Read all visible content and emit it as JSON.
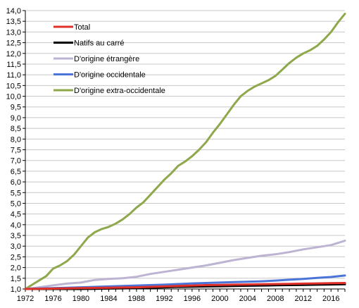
{
  "chart_data": {
    "type": "line",
    "ylim": [
      1.0,
      14.0
    ],
    "y_ticks": [
      "1,0",
      "1,5",
      "2,0",
      "2,5",
      "3,0",
      "3,5",
      "4,0",
      "4,5",
      "5,0",
      "5,5",
      "6,0",
      "6,5",
      "7,0",
      "7,5",
      "8,0",
      "8,5",
      "9,0",
      "9,5",
      "10,0",
      "10,5",
      "11,0",
      "11,5",
      "12,0",
      "12,5",
      "13,0",
      "13,5",
      "14,0"
    ],
    "xlim": [
      1972,
      2018
    ],
    "x_ticks": [
      "1972",
      "1976",
      "1980",
      "1984",
      "1988",
      "1992",
      "1996",
      "2000",
      "2004",
      "2008",
      "2012",
      "2016"
    ],
    "grid": "horizontal",
    "legend_position": "top-left",
    "series": [
      {
        "name": "Total",
        "color": "#e0302a",
        "x": [
          1972,
          1974,
          1976,
          1978,
          1980,
          1982,
          1984,
          1986,
          1988,
          1990,
          1992,
          1994,
          1996,
          1998,
          2000,
          2002,
          2004,
          2006,
          2008,
          2010,
          2012,
          2014,
          2016,
          2018
        ],
        "values": [
          1.0,
          1.01,
          1.02,
          1.03,
          1.04,
          1.05,
          1.06,
          1.07,
          1.08,
          1.1,
          1.12,
          1.14,
          1.16,
          1.18,
          1.19,
          1.2,
          1.21,
          1.22,
          1.23,
          1.24,
          1.25,
          1.26,
          1.27,
          1.28
        ]
      },
      {
        "name": "Natifs au carré",
        "color": "#000000",
        "x": [
          1972,
          1974,
          1976,
          1978,
          1980,
          1982,
          1984,
          1986,
          1988,
          1990,
          1992,
          1994,
          1996,
          1998,
          2000,
          2002,
          2004,
          2006,
          2008,
          2010,
          2012,
          2014,
          2016,
          2018
        ],
        "values": [
          1.0,
          1.0,
          1.0,
          1.0,
          1.0,
          1.01,
          1.02,
          1.03,
          1.04,
          1.06,
          1.08,
          1.1,
          1.11,
          1.12,
          1.13,
          1.14,
          1.15,
          1.16,
          1.17,
          1.18,
          1.19,
          1.2,
          1.21,
          1.22
        ]
      },
      {
        "name": "D'origine étrangère",
        "color": "#bdb3d3",
        "x": [
          1972,
          1974,
          1976,
          1978,
          1980,
          1982,
          1984,
          1986,
          1988,
          1990,
          1992,
          1994,
          1996,
          1998,
          2000,
          2002,
          2004,
          2006,
          2008,
          2010,
          2012,
          2014,
          2016,
          2018
        ],
        "values": [
          1.0,
          1.08,
          1.17,
          1.25,
          1.3,
          1.42,
          1.47,
          1.5,
          1.57,
          1.7,
          1.8,
          1.9,
          2.0,
          2.1,
          2.22,
          2.35,
          2.45,
          2.55,
          2.62,
          2.72,
          2.85,
          2.95,
          3.05,
          3.25
        ]
      },
      {
        "name": "D'origine occidentale",
        "color": "#4a74d8",
        "x": [
          1972,
          1974,
          1976,
          1978,
          1980,
          1982,
          1984,
          1986,
          1988,
          1990,
          1992,
          1994,
          1996,
          1998,
          2000,
          2002,
          2004,
          2006,
          2008,
          2010,
          2012,
          2014,
          2016,
          2018
        ],
        "values": [
          1.0,
          1.02,
          1.04,
          1.06,
          1.08,
          1.1,
          1.12,
          1.14,
          1.16,
          1.18,
          1.2,
          1.23,
          1.26,
          1.28,
          1.3,
          1.32,
          1.34,
          1.36,
          1.39,
          1.43,
          1.47,
          1.52,
          1.56,
          1.63
        ]
      },
      {
        "name": "D'origine extra-occidentale",
        "color": "#8ea84b",
        "x": [
          1972,
          1973,
          1974,
          1975,
          1976,
          1977,
          1978,
          1979,
          1980,
          1981,
          1982,
          1983,
          1984,
          1985,
          1986,
          1987,
          1988,
          1989,
          1990,
          1991,
          1992,
          1993,
          1994,
          1995,
          1996,
          1997,
          1998,
          1999,
          2000,
          2001,
          2002,
          2003,
          2004,
          2005,
          2006,
          2007,
          2008,
          2009,
          2010,
          2011,
          2012,
          2013,
          2014,
          2015,
          2016,
          2017,
          2018
        ],
        "values": [
          1.0,
          1.2,
          1.4,
          1.6,
          1.95,
          2.1,
          2.3,
          2.6,
          3.0,
          3.4,
          3.65,
          3.8,
          3.9,
          4.05,
          4.25,
          4.5,
          4.8,
          5.05,
          5.4,
          5.75,
          6.1,
          6.4,
          6.75,
          6.95,
          7.2,
          7.5,
          7.85,
          8.3,
          8.7,
          9.15,
          9.6,
          10.0,
          10.25,
          10.45,
          10.6,
          10.75,
          10.95,
          11.25,
          11.55,
          11.8,
          12.0,
          12.15,
          12.35,
          12.65,
          13.0,
          13.45,
          13.85
        ]
      }
    ]
  }
}
